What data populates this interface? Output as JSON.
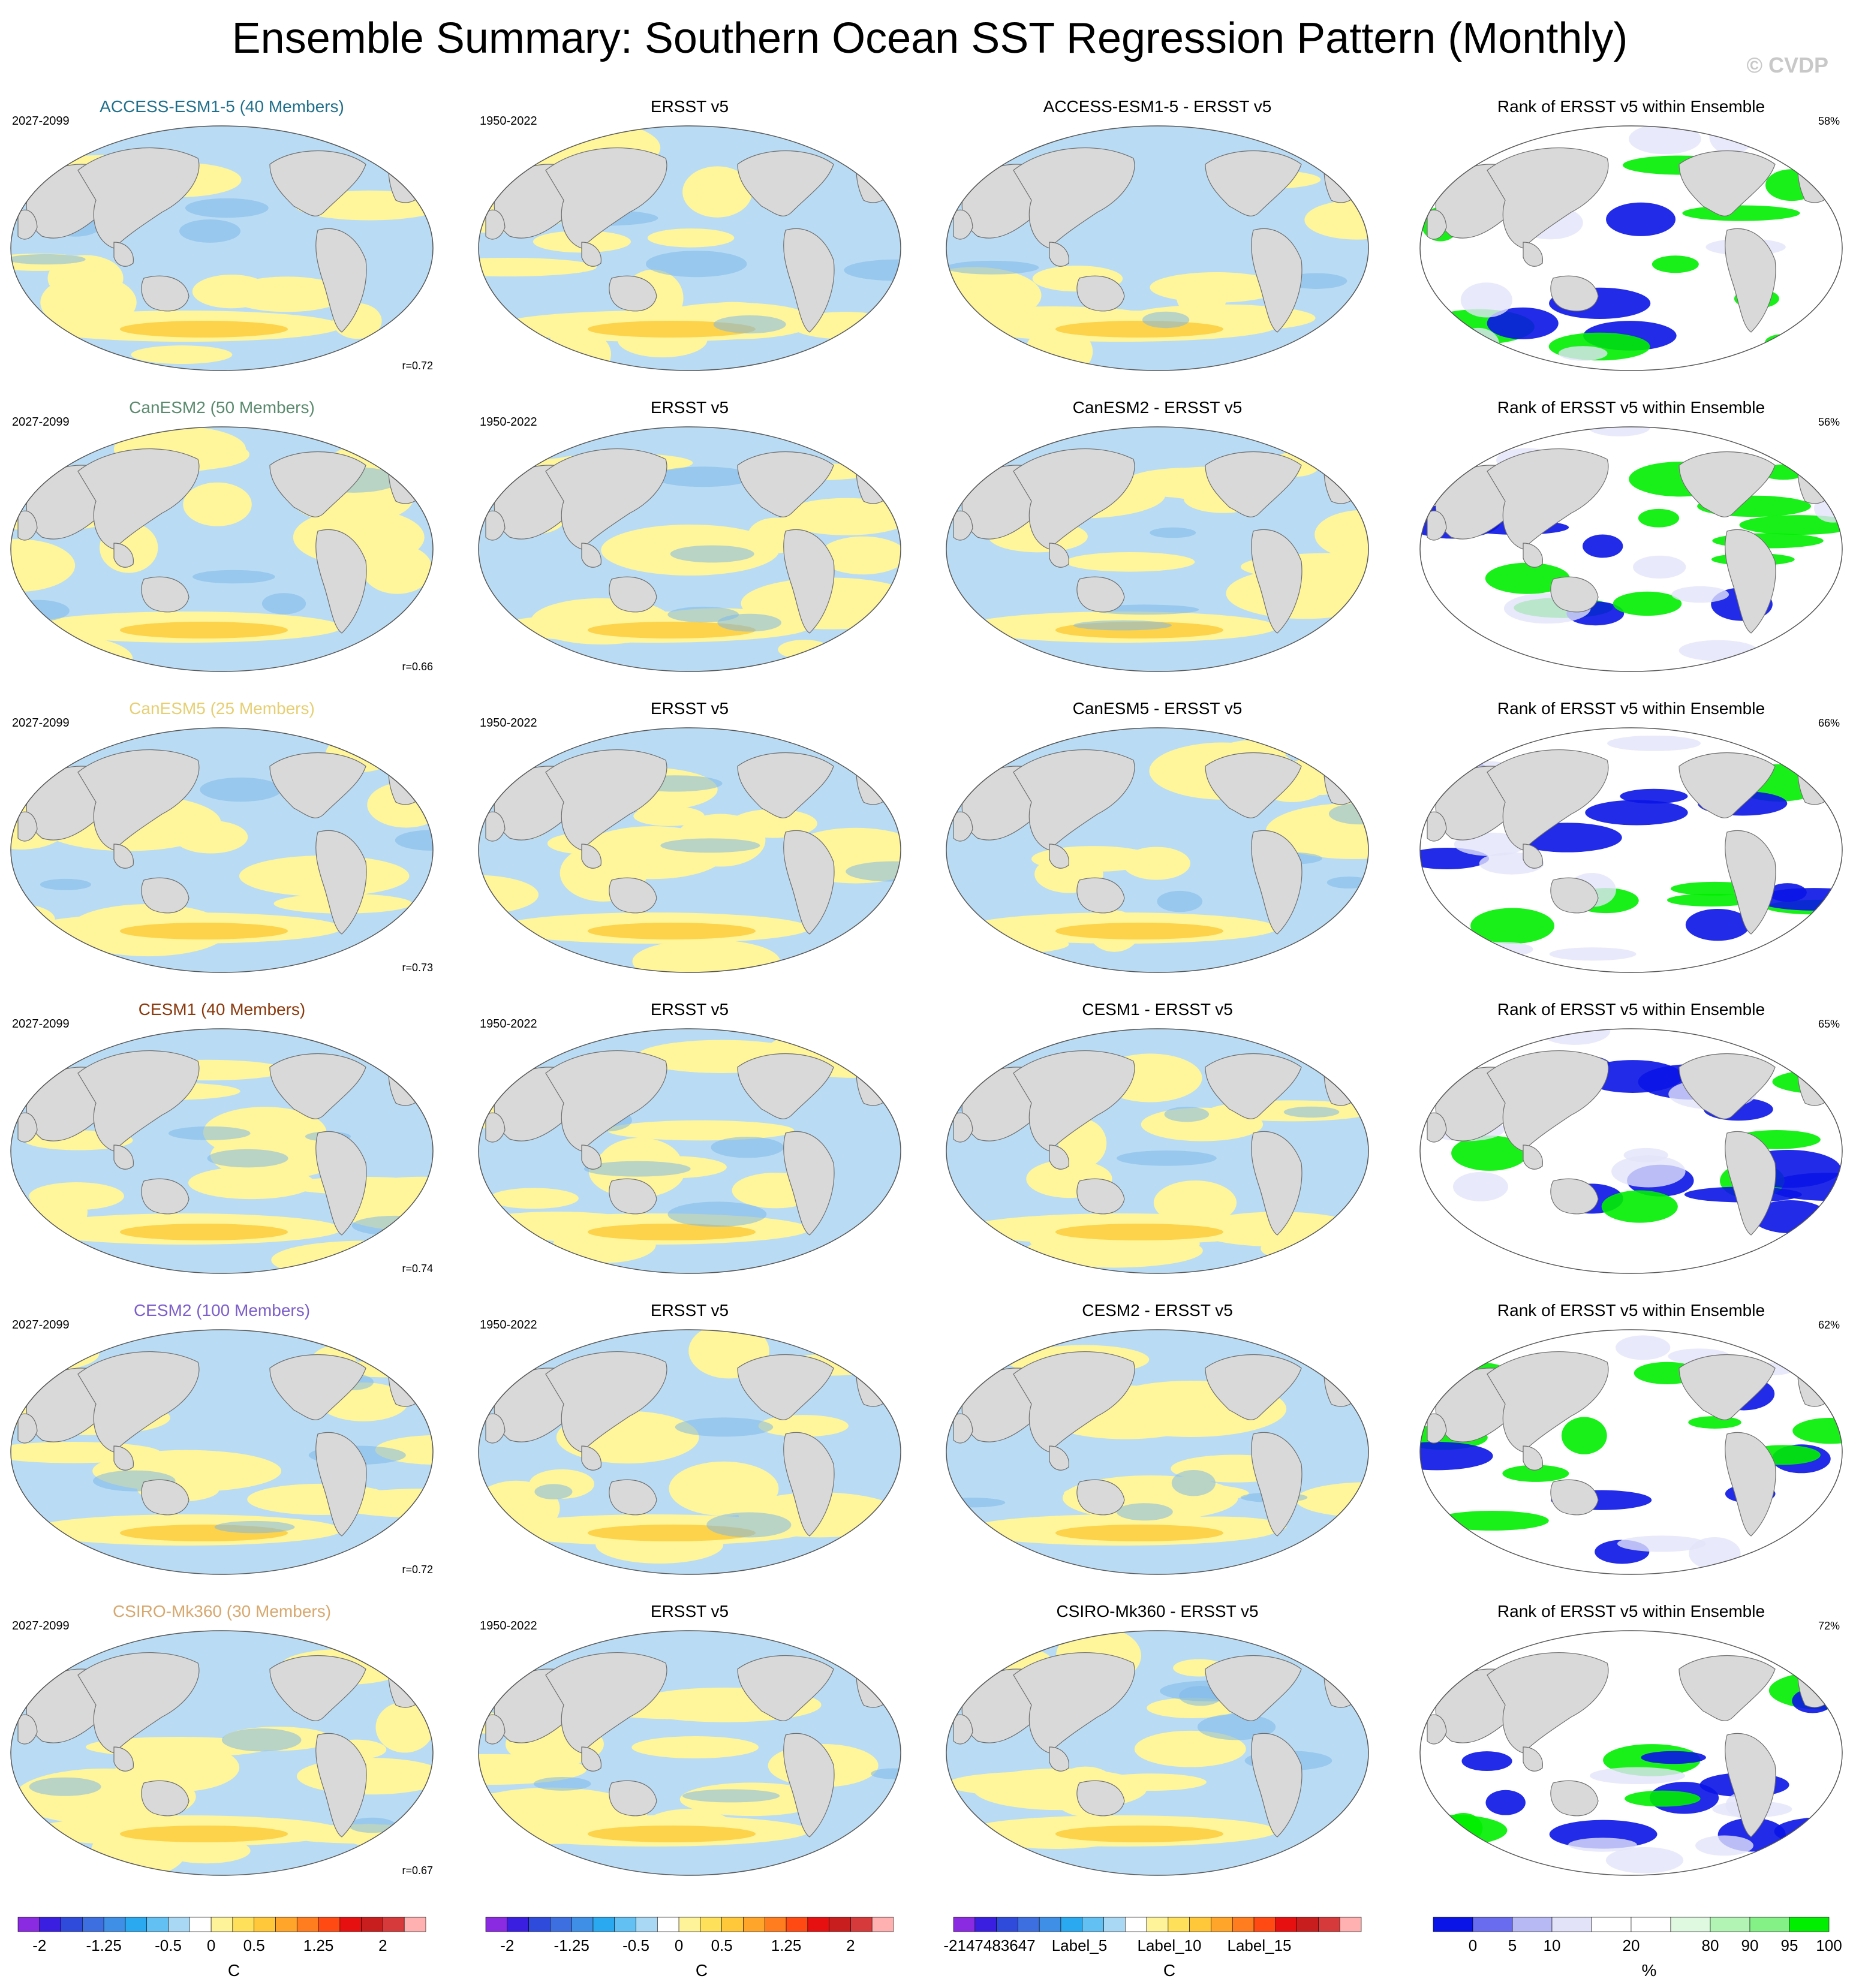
{
  "page": {
    "title": "Ensemble Summary: Southern Ocean SST Regression Pattern (Monthly)",
    "copyright": "© CVDP"
  },
  "colors": {
    "land": "#d9d9d9",
    "ocean_pos": "#fff59a",
    "ocean_pos_strong": "#fcd34a",
    "ocean_neg": "#b9dcf4",
    "ocean_neg_strong": "#7fb8ea",
    "rank_low": "#0a14e6",
    "rank_high": "#00ee00"
  },
  "rows": [
    {
      "model": {
        "title": "ACCESS-ESM1-5 (40 Members)",
        "color": "#1f6f8b",
        "years": "2027-2099",
        "r": "r=0.72"
      },
      "obs": {
        "title": "ERSST v5",
        "years": "1950-2022"
      },
      "diff": {
        "title": "ACCESS-ESM1-5 - ERSST v5"
      },
      "rank": {
        "title": "Rank of ERSST v5 within Ensemble",
        "pct": "58%"
      }
    },
    {
      "model": {
        "title": "CanESM2 (50 Members)",
        "color": "#5a8a6e",
        "years": "2027-2099",
        "r": "r=0.66"
      },
      "obs": {
        "title": "ERSST v5",
        "years": "1950-2022"
      },
      "diff": {
        "title": "CanESM2 - ERSST v5"
      },
      "rank": {
        "title": "Rank of ERSST v5 within Ensemble",
        "pct": "56%"
      }
    },
    {
      "model": {
        "title": "CanESM5 (25 Members)",
        "color": "#e6cf73",
        "years": "2027-2099",
        "r": "r=0.73"
      },
      "obs": {
        "title": "ERSST v5",
        "years": "1950-2022"
      },
      "diff": {
        "title": "CanESM5 - ERSST v5"
      },
      "rank": {
        "title": "Rank of ERSST v5 within Ensemble",
        "pct": "66%"
      }
    },
    {
      "model": {
        "title": "CESM1 (40 Members)",
        "color": "#8b3a0e",
        "years": "2027-2099",
        "r": "r=0.74"
      },
      "obs": {
        "title": "ERSST v5",
        "years": "1950-2022"
      },
      "diff": {
        "title": "CESM1 - ERSST v5"
      },
      "rank": {
        "title": "Rank of ERSST v5 within Ensemble",
        "pct": "65%"
      }
    },
    {
      "model": {
        "title": "CESM2 (100 Members)",
        "color": "#7b5ec9",
        "years": "2027-2099",
        "r": "r=0.72"
      },
      "obs": {
        "title": "ERSST v5",
        "years": "1950-2022"
      },
      "diff": {
        "title": "CESM2 - ERSST v5"
      },
      "rank": {
        "title": "Rank of ERSST v5 within Ensemble",
        "pct": "62%"
      }
    },
    {
      "model": {
        "title": "CSIRO-Mk360 (30 Members)",
        "color": "#d7a86e",
        "years": "2027-2099",
        "r": "r=0.67"
      },
      "obs": {
        "title": "ERSST v5",
        "years": "1950-2022"
      },
      "diff": {
        "title": "CSIRO-Mk360 - ERSST v5"
      },
      "rank": {
        "title": "Rank of ERSST v5 within Ensemble",
        "pct": "72%"
      }
    }
  ],
  "colorbars": [
    {
      "unit": "C",
      "colors": [
        "#8a2be2",
        "#3a1fe0",
        "#2f4bdc",
        "#3d6fe0",
        "#3f8fe6",
        "#2aa8f0",
        "#62c0f2",
        "#a8d8f4",
        "#ffffff",
        "#fff39a",
        "#ffe05a",
        "#ffc73a",
        "#ffa62a",
        "#ff7d1e",
        "#ff4a14",
        "#e61010",
        "#c81e1e",
        "#d63a3a",
        "#ffb0b0"
      ],
      "labels": [
        "-2",
        "-1.25",
        "-0.5",
        "0",
        "0.5",
        "1.25",
        "2"
      ]
    },
    {
      "unit": "C",
      "colors": [
        "#8a2be2",
        "#3a1fe0",
        "#2f4bdc",
        "#3d6fe0",
        "#3f8fe6",
        "#2aa8f0",
        "#62c0f2",
        "#a8d8f4",
        "#ffffff",
        "#fff39a",
        "#ffe05a",
        "#ffc73a",
        "#ffa62a",
        "#ff7d1e",
        "#ff4a14",
        "#e61010",
        "#c81e1e",
        "#d63a3a",
        "#ffb0b0"
      ],
      "labels": [
        "-2",
        "-1.25",
        "-0.5",
        "0",
        "0.5",
        "1.25",
        "2"
      ]
    },
    {
      "unit": "C",
      "colors": [
        "#8a2be2",
        "#3a1fe0",
        "#2f4bdc",
        "#3d6fe0",
        "#3f8fe6",
        "#2aa8f0",
        "#62c0f2",
        "#a8d8f4",
        "#ffffff",
        "#fff39a",
        "#ffe05a",
        "#ffc73a",
        "#ffa62a",
        "#ff7d1e",
        "#ff4a14",
        "#e61010",
        "#c81e1e",
        "#d63a3a",
        "#ffb0b0"
      ],
      "labels": [
        "-2147483647",
        "Label_5",
        "Label_10",
        "Label_15"
      ]
    },
    {
      "unit": "%",
      "colors": [
        "#0a14e6",
        "#6a6cf0",
        "#b7b9f5",
        "#e2e3f9",
        "#ffffff",
        "#ffffff",
        "#dff8e0",
        "#b2f4b4",
        "#84f187",
        "#00ee00"
      ],
      "labels": [
        "0",
        "5",
        "10",
        "20",
        "80",
        "90",
        "95",
        "100"
      ]
    }
  ]
}
